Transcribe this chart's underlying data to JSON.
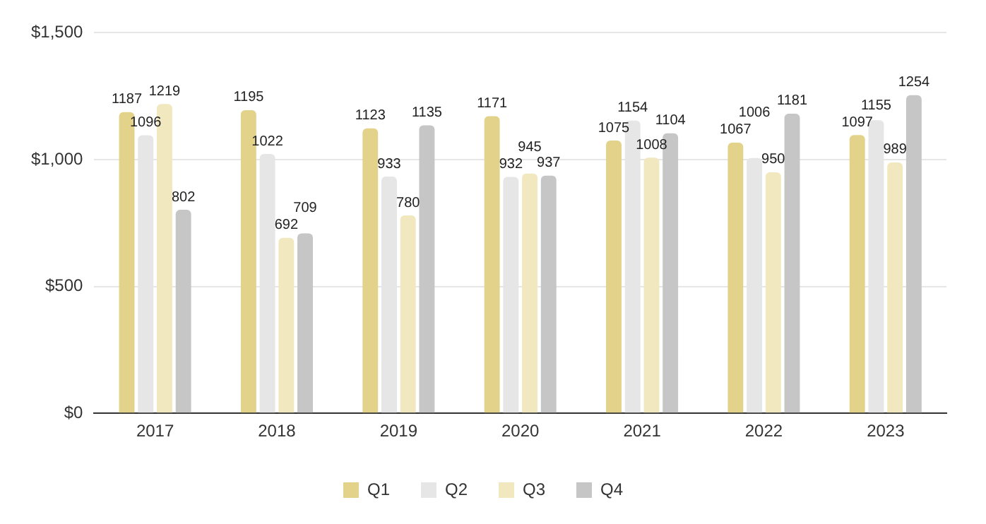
{
  "chart_data": {
    "type": "bar",
    "categories": [
      "2017",
      "2018",
      "2019",
      "2020",
      "2021",
      "2022",
      "2023"
    ],
    "series": [
      {
        "name": "Q1",
        "color": "#e3d38a",
        "values": [
          1187,
          1195,
          1123,
          1171,
          1075,
          1067,
          1097
        ]
      },
      {
        "name": "Q2",
        "color": "#e6e6e6",
        "values": [
          1096,
          1022,
          933,
          932,
          1154,
          1006,
          1155
        ]
      },
      {
        "name": "Q3",
        "color": "#f1e8bf",
        "values": [
          1219,
          692,
          780,
          945,
          1008,
          950,
          989
        ]
      },
      {
        "name": "Q4",
        "color": "#c6c6c6",
        "values": [
          802,
          709,
          1135,
          937,
          1104,
          1181,
          1254
        ]
      }
    ],
    "ylim": [
      0,
      1500
    ],
    "yticks": [
      {
        "value": 0,
        "label": "$0"
      },
      {
        "value": 500,
        "label": "$500"
      },
      {
        "value": 1000,
        "label": "$1,000"
      },
      {
        "value": 1500,
        "label": "$1,500"
      }
    ],
    "grid": "y",
    "legend": "bottom",
    "data_labels": true
  }
}
